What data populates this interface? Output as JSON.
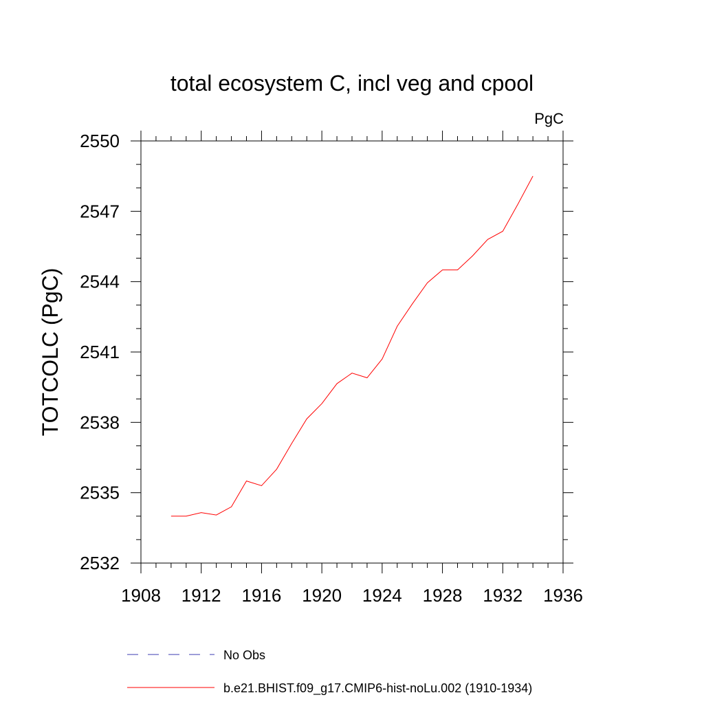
{
  "chart_data": {
    "type": "line",
    "title": "total ecosystem C, incl veg and cpool",
    "units": "PgC",
    "ylabel": "TOTCOLC  (PgC)",
    "xlabel": "",
    "xlim": [
      1908,
      1936
    ],
    "ylim": [
      2532,
      2550
    ],
    "xticks": [
      1908,
      1912,
      1916,
      1920,
      1924,
      1928,
      1932,
      1936
    ],
    "yticks": [
      2532,
      2535,
      2538,
      2541,
      2544,
      2547,
      2550
    ],
    "xtick_labels": [
      "1908",
      "1912",
      "1916",
      "1920",
      "1924",
      "1928",
      "1932",
      "1936"
    ],
    "ytick_labels": [
      "2532",
      "2535",
      "2538",
      "2541",
      "2544",
      "2547",
      "2550"
    ],
    "grid": false,
    "legend_position": "bottom",
    "series": [
      {
        "name": "b.e21.BHIST.f09_g17.CMIP6-hist-noLu.002 (1910-1934)",
        "color": "#ff0000",
        "style": "solid",
        "x": [
          1910,
          1911,
          1912,
          1913,
          1914,
          1915,
          1916,
          1917,
          1918,
          1919,
          1920,
          1921,
          1922,
          1923,
          1924,
          1925,
          1926,
          1927,
          1928,
          1929,
          1930,
          1931,
          1932,
          1933,
          1934
        ],
        "y": [
          2534.0,
          2534.0,
          2534.15,
          2534.05,
          2534.4,
          2535.5,
          2535.3,
          2536.0,
          2537.1,
          2538.15,
          2538.8,
          2539.65,
          2540.1,
          2539.9,
          2540.7,
          2542.1,
          2543.05,
          2543.95,
          2544.5,
          2544.5,
          2545.1,
          2545.8,
          2546.15,
          2547.3,
          2548.5
        ]
      },
      {
        "name": "No Obs",
        "color": "#3b3bb0",
        "style": "dashed",
        "x": [],
        "y": []
      }
    ]
  }
}
